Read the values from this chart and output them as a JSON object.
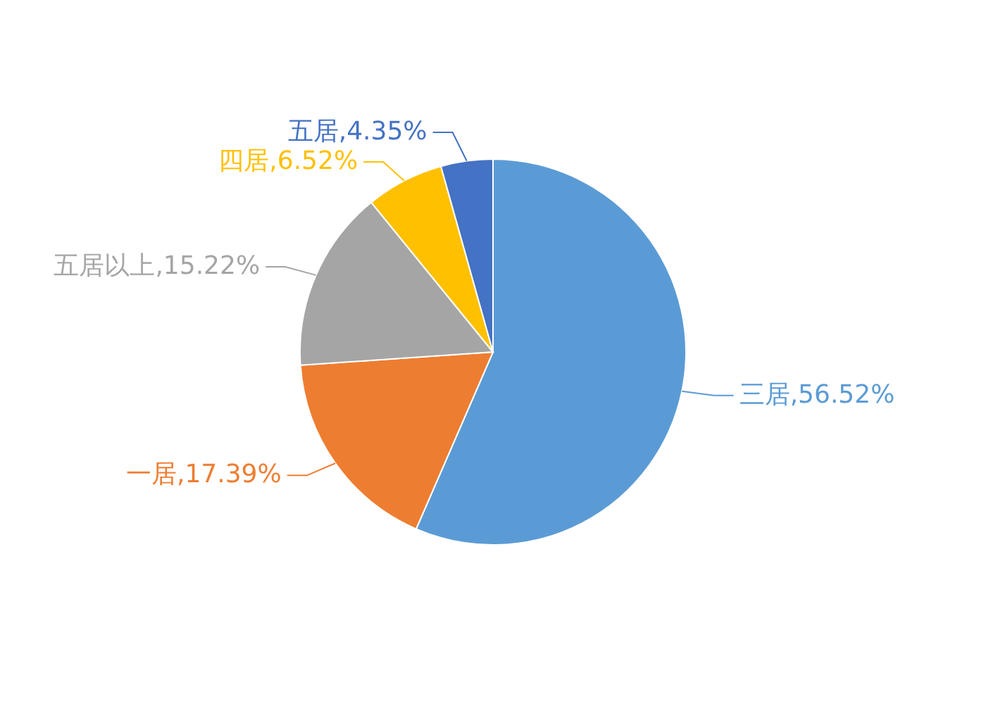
{
  "chart_data": {
    "type": "pie",
    "categories": [
      "三居",
      "一居",
      "五居以上",
      "四居",
      "五居"
    ],
    "values": [
      56.52,
      17.39,
      15.22,
      6.52,
      4.35
    ],
    "colors": [
      "#5b9bd5",
      "#ed7d31",
      "#a5a5a5",
      "#ffc000",
      "#4472c4"
    ],
    "value_labels": [
      ",56.52%",
      ",17.39%",
      ",15.22%",
      ",6.52%",
      ",4.35%"
    ]
  }
}
